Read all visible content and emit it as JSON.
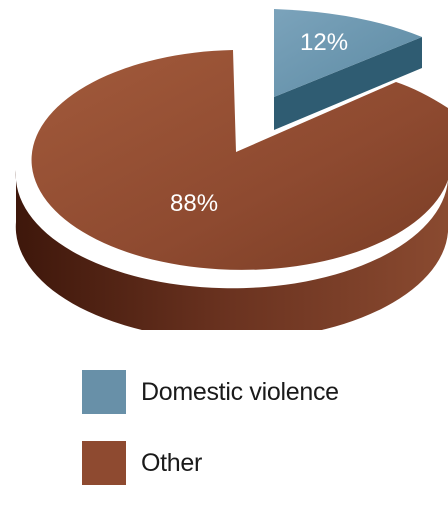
{
  "chart_data": {
    "type": "pie",
    "slices": [
      {
        "label": "Domestic violence",
        "value": 12,
        "value_label": "12%",
        "color": "#6890a8",
        "side_color": "#2f5c72"
      },
      {
        "label": "Other",
        "value": 88,
        "value_label": "88%",
        "color": "#8e4a30",
        "side_color": "#5e2a17"
      }
    ],
    "style": "3d-exploded",
    "legend_position": "bottom"
  }
}
